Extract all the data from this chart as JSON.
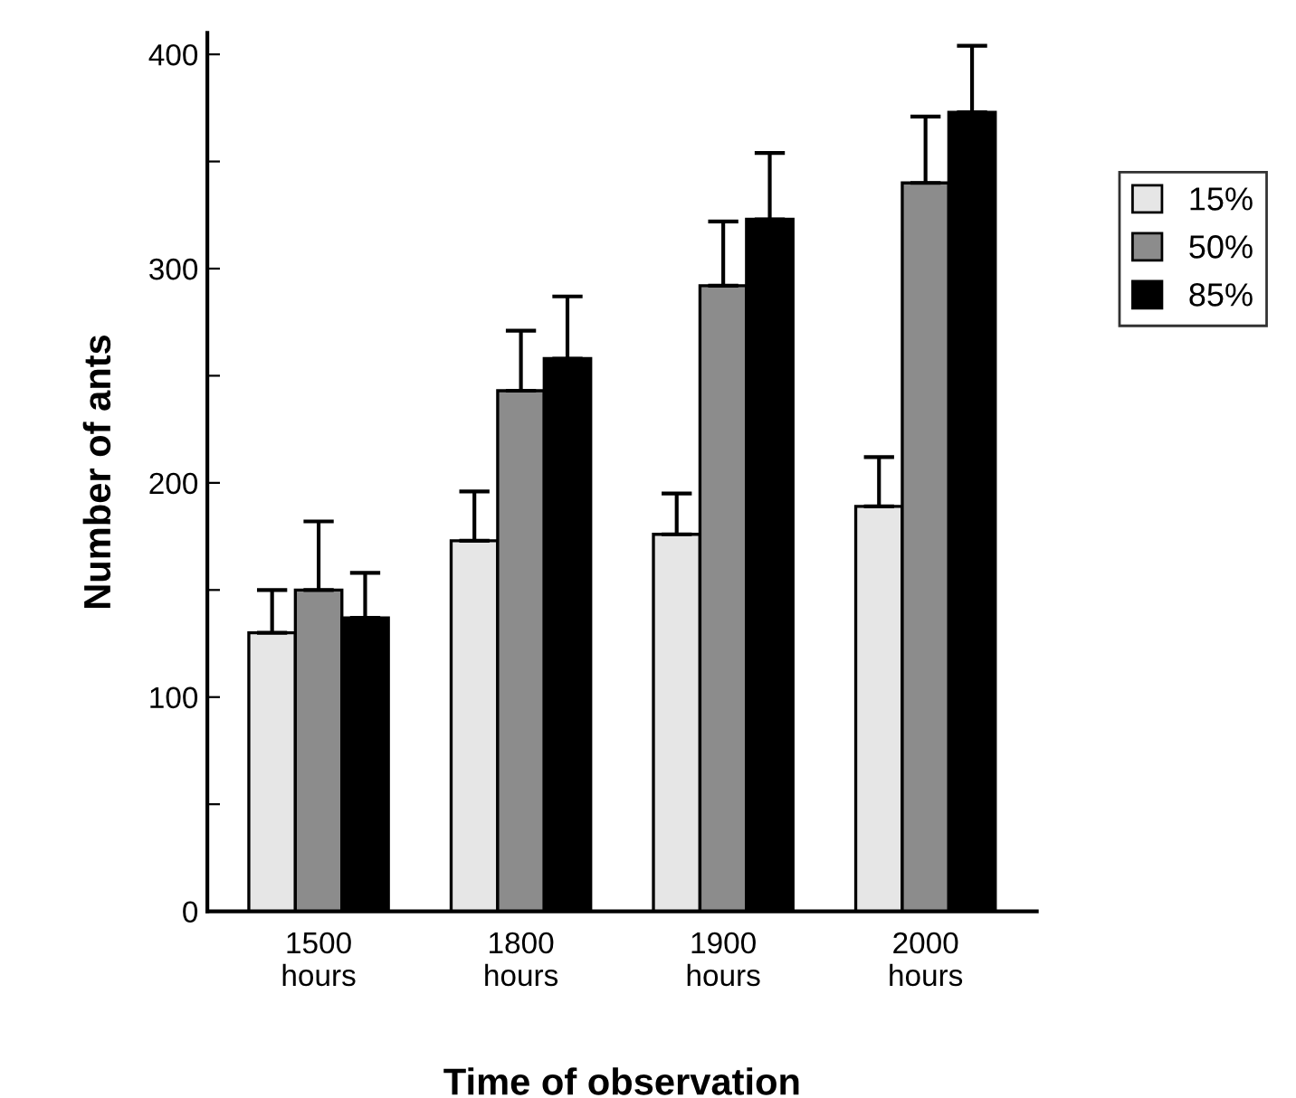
{
  "chart_data": {
    "type": "bar",
    "xlabel": "Time of observation",
    "ylabel": "Number of ants",
    "categories": [
      "1500\nhours",
      "1800\nhours",
      "1900\nhours",
      "2000\nhours"
    ],
    "series": [
      {
        "name": "15%",
        "color": "#e6e6e6",
        "values": [
          130,
          173,
          176,
          189
        ],
        "errors": [
          [
            130,
            150
          ],
          [
            173,
            196
          ],
          [
            176,
            195
          ],
          [
            189,
            212
          ]
        ]
      },
      {
        "name": "50%",
        "color": "#8c8c8c",
        "values": [
          150,
          243,
          292,
          340
        ],
        "errors": [
          [
            150,
            182
          ],
          [
            243,
            271
          ],
          [
            292,
            322
          ],
          [
            340,
            371
          ]
        ]
      },
      {
        "name": "85%",
        "color": "#000000",
        "values": [
          137,
          258,
          323,
          373
        ],
        "errors": [
          [
            137,
            158
          ],
          [
            258,
            287
          ],
          [
            323,
            354
          ],
          [
            373,
            404
          ]
        ]
      }
    ],
    "ylim": [
      0,
      410
    ],
    "yticks": [
      0,
      {
        "value": 50,
        "label": null
      },
      100,
      {
        "value": 150,
        "label": null
      },
      200,
      {
        "value": 250,
        "label": null
      },
      300,
      {
        "value": 350,
        "label": null
      },
      400
    ],
    "grid": false,
    "legend": "right"
  }
}
